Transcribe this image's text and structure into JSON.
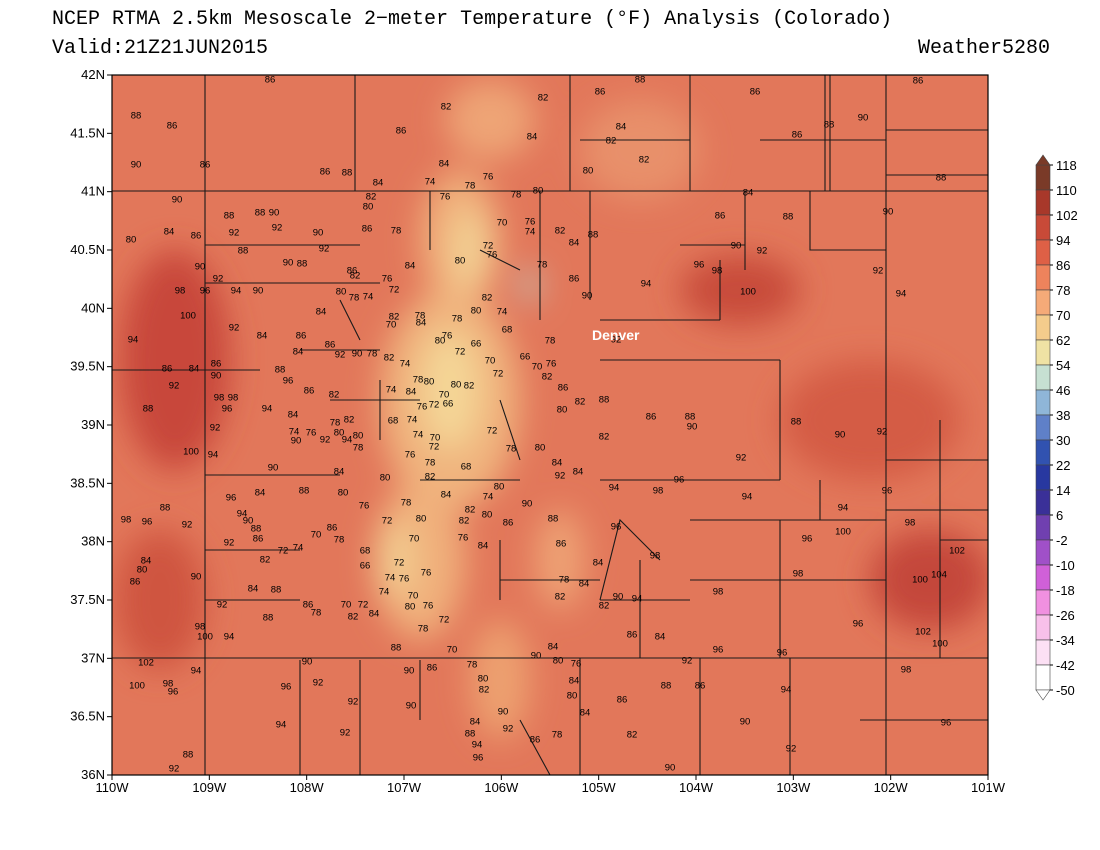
{
  "header": {
    "title": "NCEP RTMA 2.5km Mesoscale 2−meter Temperature (°F) Analysis (Colorado)",
    "valid": "Valid:21Z21JUN2015",
    "credit": "Weather5280"
  },
  "map": {
    "xlim": [
      -110,
      -101
    ],
    "ylim": [
      36,
      42
    ],
    "xticks": [
      {
        "value": -110,
        "label": "110W"
      },
      {
        "value": -109,
        "label": "109W"
      },
      {
        "value": -108,
        "label": "108W"
      },
      {
        "value": -107,
        "label": "107W"
      },
      {
        "value": -106,
        "label": "106W"
      },
      {
        "value": -105,
        "label": "105W"
      },
      {
        "value": -104,
        "label": "104W"
      },
      {
        "value": -103,
        "label": "103W"
      },
      {
        "value": -102,
        "label": "102W"
      },
      {
        "value": -101,
        "label": "101W"
      }
    ],
    "yticks": [
      {
        "value": 42,
        "label": "42N"
      },
      {
        "value": 41.5,
        "label": "41.5N"
      },
      {
        "value": 41,
        "label": "41N"
      },
      {
        "value": 40.5,
        "label": "40.5N"
      },
      {
        "value": 40,
        "label": "40N"
      },
      {
        "value": 39.5,
        "label": "39.5N"
      },
      {
        "value": 39,
        "label": "39N"
      },
      {
        "value": 38.5,
        "label": "38.5N"
      },
      {
        "value": 38,
        "label": "38N"
      },
      {
        "value": 37.5,
        "label": "37.5N"
      },
      {
        "value": 37,
        "label": "37N"
      },
      {
        "value": 36.5,
        "label": "36.5N"
      },
      {
        "value": 36,
        "label": "36N"
      }
    ],
    "city": "Denver"
  },
  "colorbar": {
    "ticks": [
      118,
      110,
      102,
      94,
      86,
      78,
      70,
      62,
      54,
      46,
      38,
      30,
      22,
      14,
      6,
      -2,
      -10,
      -18,
      -26,
      -34,
      -42,
      -50
    ],
    "colors": [
      "#7a3a28",
      "#a8382a",
      "#c84a38",
      "#de6046",
      "#ee835c",
      "#f5aa78",
      "#f4cc8c",
      "#efe2a4",
      "#c6e0d2",
      "#8fb6d8",
      "#5f80c8",
      "#3152b0",
      "#2838a0",
      "#3a3098",
      "#7040b0",
      "#a050c8",
      "#d060d8",
      "#f090e0",
      "#f8c0ea",
      "#fce0f4",
      "#ffffff"
    ]
  },
  "stations": [
    86,
    88,
    86,
    90,
    86,
    86,
    88,
    84,
    82,
    86,
    82,
    84,
    86,
    84,
    82,
    82,
    80,
    88,
    86,
    86,
    88,
    90,
    86,
    88,
    84,
    78,
    76,
    78,
    80,
    84,
    74,
    90,
    88,
    88,
    90,
    92,
    92,
    90,
    86,
    78,
    82,
    80,
    76,
    80,
    84,
    86,
    88,
    92,
    90,
    88,
    86,
    82,
    84,
    76,
    90,
    92,
    94,
    90,
    98,
    96,
    100,
    94,
    80,
    78,
    74,
    72,
    84,
    70,
    84,
    82,
    78,
    80,
    78,
    80,
    82,
    74,
    76,
    80,
    76,
    72,
    70,
    76,
    74,
    78,
    82,
    84,
    88,
    86,
    90,
    94,
    96,
    98,
    100,
    90,
    92,
    90,
    92,
    94,
    86,
    88,
    66,
    72,
    68,
    70,
    72,
    66,
    70,
    76,
    82,
    78,
    86,
    80,
    82,
    88,
    92,
    92,
    84,
    86,
    84,
    86,
    92,
    90,
    78,
    82,
    74,
    86,
    84,
    86,
    90,
    88,
    96,
    86,
    82,
    74,
    84,
    78,
    80,
    80,
    88,
    98,
    98,
    96,
    92,
    94,
    84,
    78,
    80,
    76,
    82,
    94,
    80,
    92,
    90,
    74,
    68,
    74,
    76,
    72,
    66,
    70,
    82,
    92,
    100,
    94,
    90,
    84,
    78,
    74,
    70,
    72,
    76,
    78,
    82,
    68,
    72,
    78,
    80,
    84,
    92,
    84,
    86,
    88,
    90,
    82,
    88,
    90,
    92,
    92,
    94,
    98,
    96,
    94,
    94,
    96,
    88,
    80,
    84,
    96,
    88,
    96,
    92,
    98,
    76,
    80,
    78,
    84,
    74,
    80,
    90,
    80,
    82,
    82,
    86,
    88,
    80,
    72,
    70,
    86,
    78,
    70,
    94,
    90,
    88,
    86,
    92,
    74,
    72,
    82,
    68,
    76,
    84,
    96,
    96,
    100,
    98,
    102,
    86,
    84,
    98,
    84,
    80,
    86,
    90,
    66,
    72,
    74,
    76,
    76,
    70,
    74,
    84,
    88,
    92,
    78,
    84,
    82,
    82,
    90,
    94,
    98,
    98,
    104,
    100,
    86,
    78,
    70,
    72,
    82,
    84,
    80,
    76,
    72,
    78,
    88,
    98,
    100,
    94,
    96,
    102,
    100,
    86,
    84,
    96,
    96,
    84,
    70,
    88,
    90,
    76,
    80,
    90,
    90,
    86,
    78,
    102,
    94,
    100,
    98,
    96,
    96,
    92,
    80,
    82,
    84,
    80,
    86,
    88,
    86,
    92,
    94,
    98,
    92,
    90,
    84,
    90,
    94,
    92,
    84,
    88,
    92,
    94,
    96,
    86,
    78,
    82,
    90,
    96,
    92,
    88,
    92,
    90
  ]
}
